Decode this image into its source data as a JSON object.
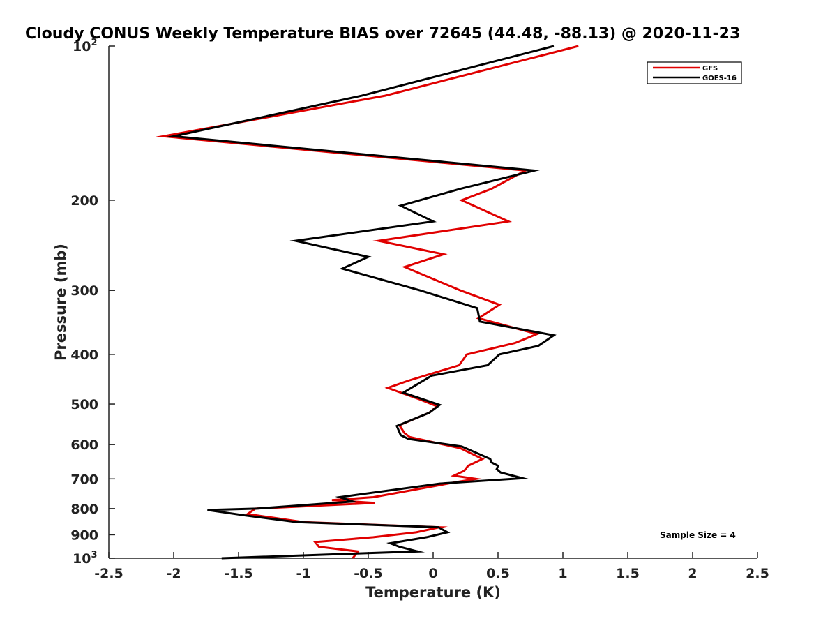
{
  "chart_data": {
    "type": "line",
    "title": "Cloudy CONUS Weekly Temperature BIAS over 72645 (44.48, -88.13) @ 2020-11-23",
    "xlabel": "Temperature (K)",
    "ylabel": "Pressure (mb)",
    "xlim": [
      -2.5,
      2.5
    ],
    "ylim": [
      100,
      1000
    ],
    "y_scale": "log",
    "y_reversed": true,
    "grid": false,
    "legend_placement": "top-right",
    "x_ticks": [
      {
        "value": -2.5,
        "label": "-2.5"
      },
      {
        "value": -2,
        "label": "-2"
      },
      {
        "value": -1.5,
        "label": "-1.5"
      },
      {
        "value": -1,
        "label": "-1"
      },
      {
        "value": -0.5,
        "label": "-0.5"
      },
      {
        "value": 0,
        "label": "0"
      },
      {
        "value": 0.5,
        "label": "0.5"
      },
      {
        "value": 1,
        "label": "1"
      },
      {
        "value": 1.5,
        "label": "1.5"
      },
      {
        "value": 2,
        "label": "2"
      },
      {
        "value": 2.5,
        "label": "2.5"
      }
    ],
    "y_ticks": [
      {
        "value": 200,
        "label": "200"
      },
      {
        "value": 300,
        "label": "300"
      },
      {
        "value": 400,
        "label": "400"
      },
      {
        "value": 500,
        "label": "500"
      },
      {
        "value": 600,
        "label": "600"
      },
      {
        "value": 700,
        "label": "700"
      },
      {
        "value": 800,
        "label": "800"
      },
      {
        "value": 900,
        "label": "900"
      }
    ],
    "y_ticks_power": [
      {
        "value": 100,
        "base": "10",
        "exp": "2"
      },
      {
        "value": 1000,
        "base": "10",
        "exp": "3"
      }
    ],
    "annotation": "Sample Size = 4",
    "series": [
      {
        "name": "GFS",
        "color": "#e00000",
        "points": [
          [
            1.12,
            100
          ],
          [
            -0.37,
            125
          ],
          [
            -2.08,
            150
          ],
          [
            0.71,
            175
          ],
          [
            0.45,
            190
          ],
          [
            0.22,
            200
          ],
          [
            0.58,
            220
          ],
          [
            -0.42,
            240
          ],
          [
            0.08,
            255
          ],
          [
            -0.22,
            270
          ],
          [
            0.21,
            300
          ],
          [
            0.51,
            320
          ],
          [
            0.35,
            340
          ],
          [
            0.8,
            365
          ],
          [
            0.63,
            380
          ],
          [
            0.26,
            400
          ],
          [
            0.2,
            420
          ],
          [
            -0.19,
            450
          ],
          [
            -0.35,
            465
          ],
          [
            -0.1,
            490
          ],
          [
            0.03,
            505
          ],
          [
            -0.03,
            520
          ],
          [
            -0.26,
            550
          ],
          [
            -0.22,
            570
          ],
          [
            -0.18,
            580
          ],
          [
            0.21,
            610
          ],
          [
            0.38,
            640
          ],
          [
            0.27,
            660
          ],
          [
            0.24,
            675
          ],
          [
            0.16,
            690
          ],
          [
            0.33,
            700
          ],
          [
            0.18,
            710
          ],
          [
            -0.46,
            760
          ],
          [
            -0.78,
            770
          ],
          [
            -0.45,
            780
          ],
          [
            -1.37,
            800
          ],
          [
            -1.43,
            820
          ],
          [
            -1.0,
            850
          ],
          [
            0.05,
            870
          ],
          [
            -0.13,
            890
          ],
          [
            -0.46,
            910
          ],
          [
            -0.91,
            930
          ],
          [
            -0.88,
            950
          ],
          [
            -0.58,
            970
          ],
          [
            -0.62,
            1000
          ]
        ]
      },
      {
        "name": "GOES-16",
        "color": "#000000",
        "points": [
          [
            0.93,
            100
          ],
          [
            -0.55,
            125
          ],
          [
            -2.0,
            150
          ],
          [
            0.78,
            175
          ],
          [
            0.21,
            190
          ],
          [
            -0.25,
            205
          ],
          [
            0.0,
            220
          ],
          [
            -1.06,
            240
          ],
          [
            -0.5,
            258
          ],
          [
            -0.7,
            272
          ],
          [
            -0.1,
            300
          ],
          [
            0.34,
            325
          ],
          [
            0.36,
            345
          ],
          [
            0.93,
            367
          ],
          [
            0.81,
            385
          ],
          [
            0.51,
            400
          ],
          [
            0.42,
            420
          ],
          [
            -0.01,
            440
          ],
          [
            -0.23,
            475
          ],
          [
            0.05,
            502
          ],
          [
            -0.03,
            520
          ],
          [
            -0.28,
            552
          ],
          [
            -0.25,
            575
          ],
          [
            -0.19,
            585
          ],
          [
            0.22,
            605
          ],
          [
            0.44,
            640
          ],
          [
            0.45,
            650
          ],
          [
            0.5,
            660
          ],
          [
            0.49,
            670
          ],
          [
            0.52,
            680
          ],
          [
            0.69,
            698
          ],
          [
            0.05,
            715
          ],
          [
            -0.72,
            760
          ],
          [
            -0.62,
            775
          ],
          [
            -1.36,
            800
          ],
          [
            -1.74,
            805
          ],
          [
            -1.45,
            825
          ],
          [
            -1.05,
            850
          ],
          [
            0.04,
            870
          ],
          [
            0.11,
            890
          ],
          [
            -0.05,
            910
          ],
          [
            -0.33,
            935
          ],
          [
            -0.26,
            950
          ],
          [
            -0.12,
            970
          ],
          [
            -1.63,
            1000
          ]
        ]
      }
    ]
  }
}
